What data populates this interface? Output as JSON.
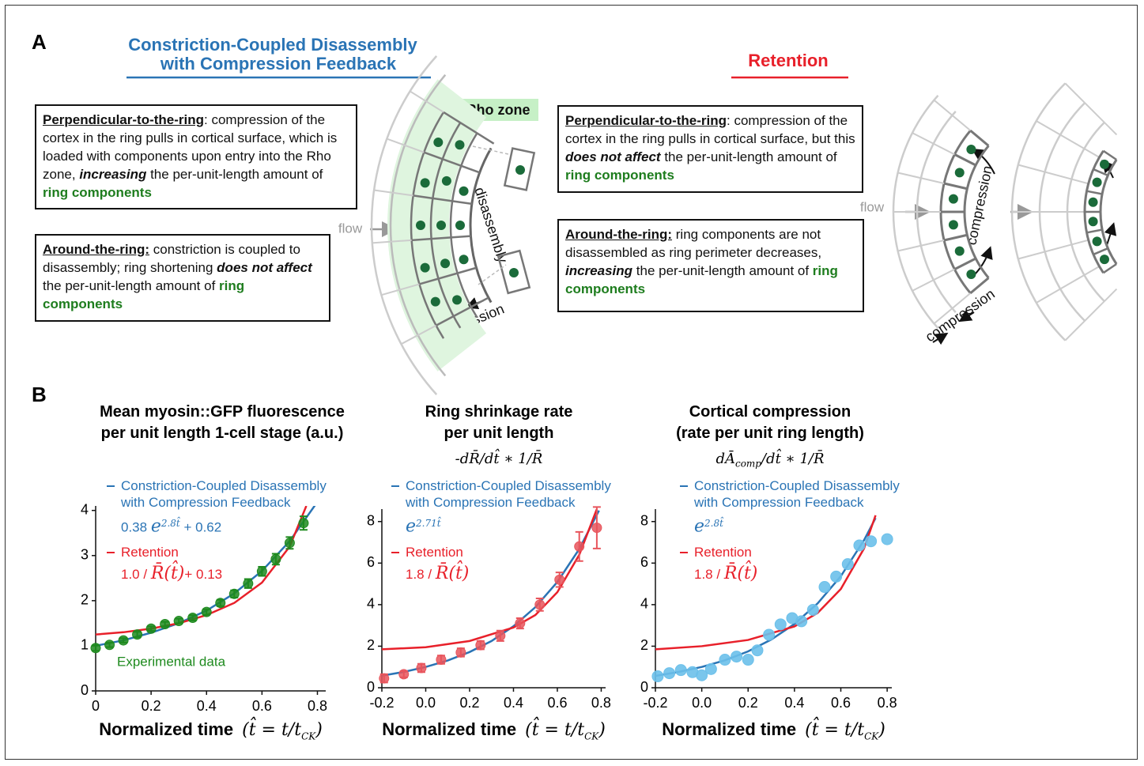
{
  "panel_a": {
    "label": "A",
    "left": {
      "title": [
        "Constriction-Coupled Disassembly",
        "with Compression Feedback"
      ],
      "boxes": [
        [
          {
            "style": "term",
            "text": "Perpendicular-to-the-ring"
          },
          {
            "text": ": compression of the cortex in the ring pulls in cortical surface, which is loaded with components upon entry into the Rho zone, "
          },
          {
            "style": "em",
            "text": "increasing"
          },
          {
            "text": " the per-unit-length amount of "
          },
          {
            "style": "green",
            "text": "ring components"
          }
        ],
        [
          {
            "style": "term",
            "text": "Around-the-ring:"
          },
          {
            "text": " constriction is coupled to disassembly; ring shortening "
          },
          {
            "style": "em",
            "text": "does not affect"
          },
          {
            "text": " the per-unit-length amount of "
          },
          {
            "style": "green",
            "text": "ring components"
          }
        ]
      ],
      "diagram": {
        "zone": "Rho zone",
        "flow": "flow",
        "disassembly": "disassembly",
        "compression": "compression"
      }
    },
    "right": {
      "title": "Retention",
      "boxes": [
        [
          {
            "style": "term",
            "text": "Perpendicular-to-the-ring"
          },
          {
            "text": ": compression of the cortex in the ring pulls in cortical surface, but this "
          },
          {
            "style": "em",
            "text": "does not affect"
          },
          {
            "text": " the per-unit-length amount of "
          },
          {
            "style": "green",
            "text": "ring components"
          }
        ],
        [
          {
            "style": "term",
            "text": "Around-the-ring:"
          },
          {
            "text": " ring components are not disassembled as ring perimeter decreases, "
          },
          {
            "style": "em",
            "text": "increasing"
          },
          {
            "text": " the per-unit-length amount of "
          },
          {
            "style": "green",
            "text": "ring components"
          }
        ]
      ],
      "diagram": {
        "flow": "flow",
        "compression": [
          "compression",
          "compression"
        ]
      }
    }
  },
  "panel_b": {
    "label": "B"
  },
  "chart_data": [
    {
      "type": "line",
      "title": [
        "Mean myosin::GFP fluorescence",
        "per unit length 1-cell stage (a.u.)"
      ],
      "xlabel": "Normalized time",
      "xlabel_formula": [
        {
          "text": "(t̂ = t/t"
        },
        {
          "sub": "CK"
        },
        {
          "text": ")"
        }
      ],
      "xlim": [
        0,
        0.83
      ],
      "xticks": [
        0,
        0.2,
        0.4,
        0.6,
        0.8
      ],
      "ylim": [
        0,
        4.1
      ],
      "yticks": [
        0,
        1,
        2,
        3,
        4
      ],
      "series": [
        {
          "type": "line",
          "name": "Constriction-Coupled Disassembly with Compression Feedback",
          "color": "#2a74b5",
          "formula": [
            {
              "text": "0.38 "
            },
            {
              "math": "e"
            },
            {
              "sup": "2.8t̂"
            },
            {
              "text": " + 0.62"
            }
          ],
          "x": [
            0,
            0.1,
            0.2,
            0.3,
            0.4,
            0.5,
            0.6,
            0.7,
            0.8
          ],
          "values": [
            1.0,
            1.12,
            1.29,
            1.5,
            1.78,
            2.16,
            2.66,
            3.32,
            4.19
          ]
        },
        {
          "type": "line",
          "name": "Retention",
          "color": "#e8202a",
          "formula": [
            {
              "text": "1.0 / "
            },
            {
              "math": "R̄(t̂)"
            },
            {
              "text": "+ 0.13"
            }
          ],
          "x": [
            0,
            0.1,
            0.2,
            0.3,
            0.4,
            0.5,
            0.6,
            0.7,
            0.76
          ],
          "values": [
            1.25,
            1.3,
            1.38,
            1.5,
            1.68,
            1.95,
            2.4,
            3.2,
            4.1
          ]
        },
        {
          "type": "scatter",
          "name": "Experimental data",
          "color": "#1e8a1e",
          "x": [
            0,
            0.05,
            0.1,
            0.15,
            0.2,
            0.25,
            0.3,
            0.35,
            0.4,
            0.45,
            0.5,
            0.55,
            0.6,
            0.65,
            0.7,
            0.75
          ],
          "values": [
            0.95,
            1.02,
            1.12,
            1.25,
            1.38,
            1.48,
            1.55,
            1.62,
            1.75,
            1.95,
            2.15,
            2.38,
            2.65,
            2.92,
            3.28,
            3.72
          ],
          "errors": [
            0.06,
            0.05,
            0.05,
            0.06,
            0.05,
            0.05,
            0.05,
            0.06,
            0.06,
            0.07,
            0.08,
            0.1,
            0.1,
            0.12,
            0.13,
            0.15
          ]
        }
      ]
    },
    {
      "type": "line",
      "title": [
        "Ring shrinkage rate",
        "per unit length"
      ],
      "subtitle": [
        {
          "math": "-dR̄/dt̂ ∗ 1/R̄"
        }
      ],
      "xlabel": "Normalized time",
      "xlabel_formula": [
        {
          "text": "(t̂ = t/t"
        },
        {
          "sub": "CK"
        },
        {
          "text": ")"
        }
      ],
      "xlim": [
        -0.2,
        0.82
      ],
      "xticks": [
        -0.2,
        {
          "value": 0,
          "label": "0.0"
        },
        0.2,
        0.4,
        0.6,
        0.8
      ],
      "ylim": [
        0,
        8.6
      ],
      "yticks": [
        0,
        2,
        4,
        6,
        8
      ],
      "series": [
        {
          "type": "line",
          "name": "Constriction-Coupled Disassembly with Compression Feedback",
          "color": "#2a74b5",
          "formula": [
            {
              "math": "e"
            },
            {
              "sup": "2.71t̂"
            }
          ],
          "x": [
            -0.2,
            -0.1,
            0,
            0.1,
            0.2,
            0.3,
            0.4,
            0.5,
            0.6,
            0.7,
            0.79
          ],
          "values": [
            0.58,
            0.76,
            1.0,
            1.31,
            1.72,
            2.25,
            2.96,
            3.88,
            5.09,
            6.68,
            8.53
          ]
        },
        {
          "type": "line",
          "name": "Retention",
          "color": "#e8202a",
          "formula": [
            {
              "text": "1.8 / "
            },
            {
              "math": "R̄(t̂)"
            }
          ],
          "x": [
            -0.2,
            0,
            0.2,
            0.4,
            0.5,
            0.6,
            0.7,
            0.78
          ],
          "values": [
            1.85,
            1.95,
            2.25,
            2.9,
            3.5,
            4.6,
            6.4,
            8.6
          ]
        },
        {
          "type": "scatter",
          "color": "#e8555c",
          "x": [
            -0.19,
            -0.1,
            -0.02,
            0.07,
            0.16,
            0.25,
            0.34,
            0.43,
            0.52,
            0.61,
            0.7,
            0.78
          ],
          "values": [
            0.45,
            0.65,
            0.95,
            1.35,
            1.7,
            2.05,
            2.5,
            3.1,
            4.0,
            5.2,
            6.8,
            7.7
          ],
          "errors": [
            0.2,
            0.15,
            0.2,
            0.2,
            0.2,
            0.2,
            0.25,
            0.25,
            0.3,
            0.35,
            0.7,
            1.0
          ]
        }
      ]
    },
    {
      "type": "line",
      "title": [
        "Cortical compression",
        "(rate per unit ring length)"
      ],
      "subtitle": [
        {
          "math": "dĀ"
        },
        {
          "sub": "comp"
        },
        {
          "math": "/dt̂ ∗ 1/R̄"
        }
      ],
      "xlabel": "Normalized time",
      "xlabel_formula": [
        {
          "text": "(t̂ = t/t"
        },
        {
          "sub": "CK"
        },
        {
          "text": ")"
        }
      ],
      "xlim": [
        -0.2,
        0.82
      ],
      "xticks": [
        -0.2,
        {
          "value": 0,
          "label": "0.0"
        },
        0.2,
        0.4,
        0.6,
        0.8
      ],
      "ylim": [
        0,
        8.6
      ],
      "yticks": [
        0,
        2,
        4,
        6,
        8
      ],
      "series": [
        {
          "type": "line",
          "name": "Constriction-Coupled Disassembly with Compression Feedback",
          "color": "#2a74b5",
          "formula": [
            {
              "math": "e"
            },
            {
              "sup": "2.8t̂"
            }
          ],
          "x": [
            -0.2,
            -0.1,
            0,
            0.1,
            0.2,
            0.3,
            0.4,
            0.5,
            0.6,
            0.7,
            0.75
          ],
          "values": [
            0.57,
            0.76,
            1.0,
            1.32,
            1.75,
            2.32,
            3.07,
            4.06,
            5.37,
            7.1,
            8.17
          ]
        },
        {
          "type": "line",
          "name": "Retention",
          "color": "#e8202a",
          "formula": [
            {
              "text": "1.8 / "
            },
            {
              "math": "R̄(t̂)"
            }
          ],
          "x": [
            -0.2,
            0,
            0.2,
            0.4,
            0.5,
            0.6,
            0.7,
            0.75
          ],
          "values": [
            1.85,
            2.0,
            2.3,
            2.95,
            3.6,
            4.75,
            6.7,
            8.3
          ]
        },
        {
          "type": "scatter",
          "color": "#6cc0ea",
          "x": [
            -0.19,
            -0.14,
            -0.09,
            -0.04,
            0,
            0.04,
            0.1,
            0.15,
            0.2,
            0.24,
            0.29,
            0.34,
            0.39,
            0.43,
            0.48,
            0.53,
            0.58,
            0.63,
            0.68,
            0.73,
            0.8
          ],
          "values": [
            0.55,
            0.7,
            0.85,
            0.75,
            0.6,
            0.9,
            1.35,
            1.5,
            1.35,
            1.8,
            2.55,
            3.05,
            3.35,
            3.2,
            3.75,
            4.85,
            5.35,
            5.95,
            6.85,
            7.05,
            7.15
          ]
        }
      ]
    }
  ]
}
